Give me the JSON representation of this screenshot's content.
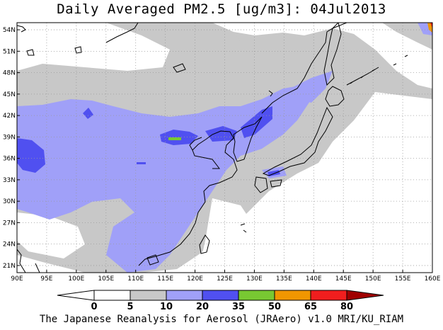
{
  "title": "Daily Averaged PM2.5 [ug/m3]: 04Jul2013",
  "footer": "The Japanese Reanalysis for Aerosol (JRAero) v1.0 MRI/KU_RIAM",
  "map": {
    "lon_range": [
      90,
      160
    ],
    "lat_range": [
      20,
      55
    ],
    "lon_ticks": [
      "90E",
      "95E",
      "100E",
      "105E",
      "110E",
      "115E",
      "120E",
      "125E",
      "130E",
      "135E",
      "140E",
      "145E",
      "150E",
      "155E",
      "160E"
    ],
    "lat_ticks": [
      "54N",
      "51N",
      "48N",
      "45N",
      "42N",
      "39N",
      "36N",
      "33N",
      "30N",
      "27N",
      "24N",
      "21N"
    ],
    "grid": "dotted"
  },
  "colorbar": {
    "levels": [
      "0",
      "5",
      "10",
      "20",
      "35",
      "50",
      "65",
      "80"
    ],
    "colors": [
      "#ffffff",
      "#ffffff",
      "#c8c8c8",
      "#a0a0f8",
      "#5050f0",
      "#78c832",
      "#f09600",
      "#f01e1e",
      "#a00000"
    ]
  }
}
